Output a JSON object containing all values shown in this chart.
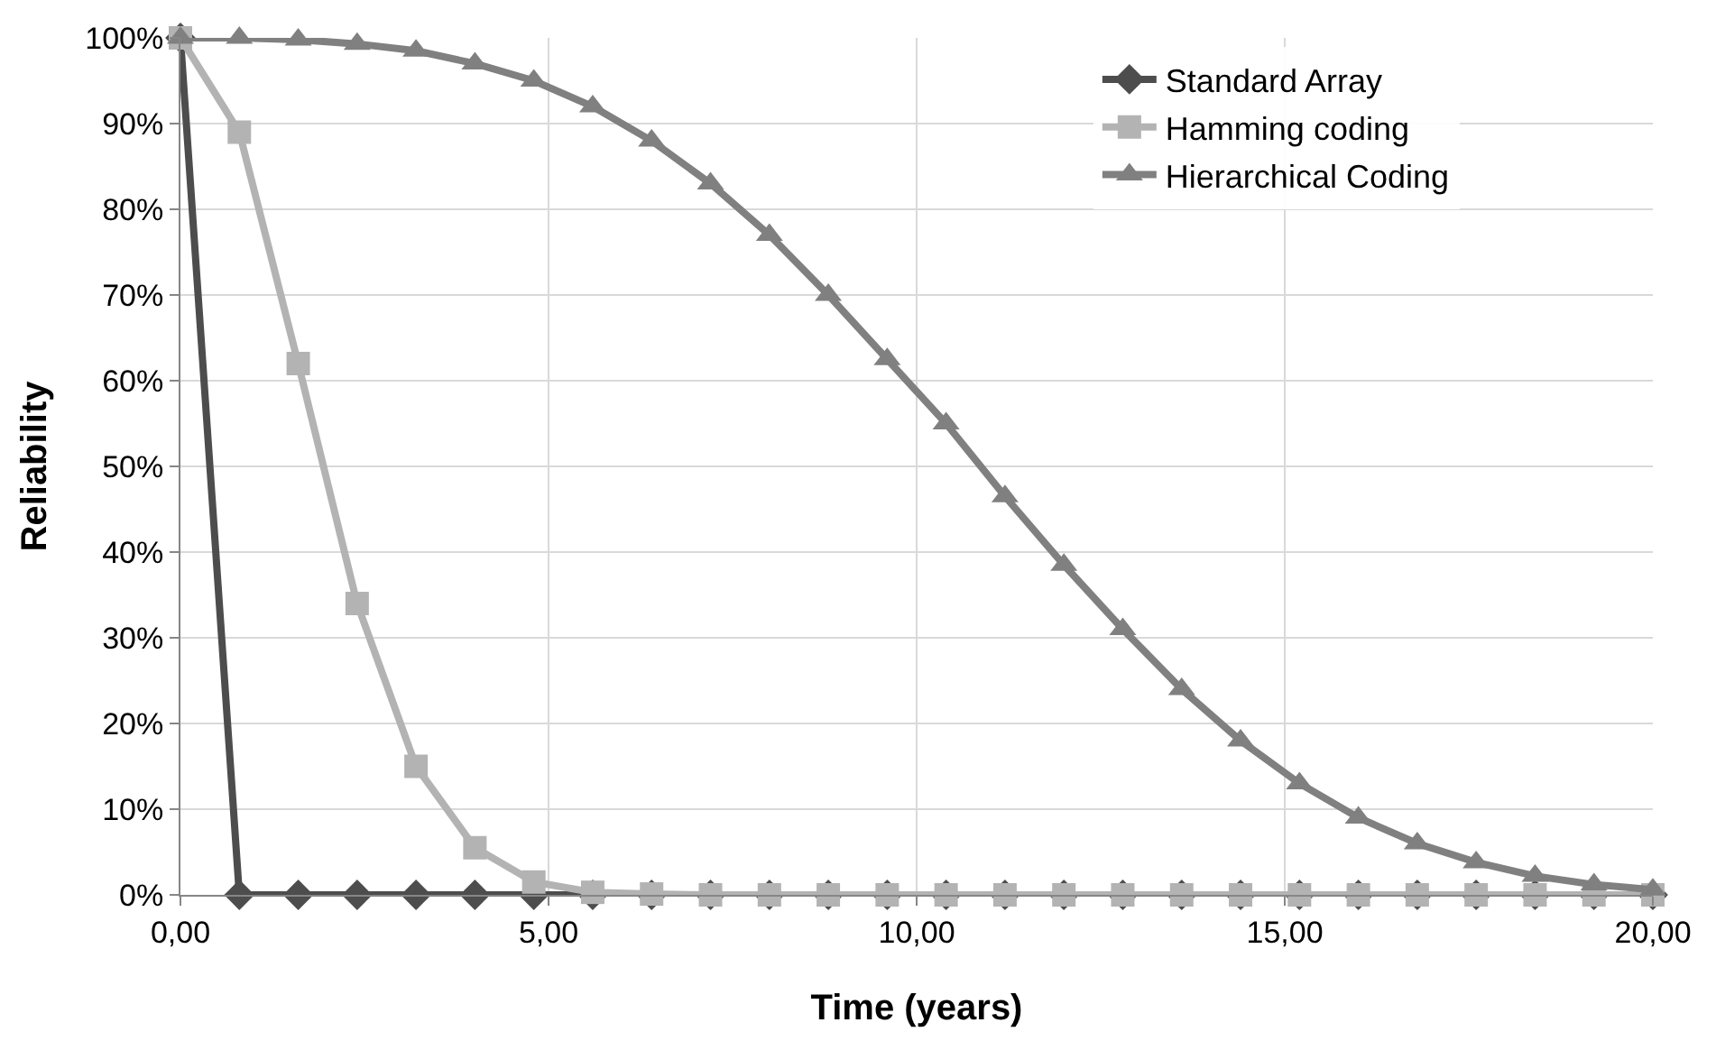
{
  "chart_data": {
    "type": "line",
    "xlabel": "Time (years)",
    "ylabel": "Reliability",
    "x": [
      0,
      0.8,
      1.6,
      2.4,
      3.2,
      4.0,
      4.8,
      5.6,
      6.4,
      7.2,
      8.0,
      8.8,
      9.6,
      10.4,
      11.2,
      12.0,
      12.8,
      13.6,
      14.4,
      15.2,
      16.0,
      16.8,
      17.6,
      18.4,
      19.2,
      20.0
    ],
    "series": [
      {
        "name": "Standard Array",
        "color": "#4d4d4d",
        "marker": "diamond",
        "values": [
          100,
          0,
          0,
          0,
          0,
          0,
          0,
          0,
          0,
          0,
          0,
          0,
          0,
          0,
          0,
          0,
          0,
          0,
          0,
          0,
          0,
          0,
          0,
          0,
          0,
          0
        ]
      },
      {
        "name": "Hamming coding",
        "color": "#b3b3b3",
        "marker": "square",
        "values": [
          100,
          89,
          62,
          34,
          15,
          5.5,
          1.5,
          0.3,
          0.1,
          0,
          0,
          0,
          0,
          0,
          0,
          0,
          0,
          0,
          0,
          0,
          0,
          0,
          0,
          0,
          0,
          0
        ]
      },
      {
        "name": "Hierarchical Coding",
        "color": "#808080",
        "marker": "triangle",
        "values": [
          100,
          100,
          99.8,
          99.3,
          98.5,
          97,
          95,
          92,
          88,
          83,
          77,
          70,
          62.5,
          55,
          46.5,
          38.5,
          31,
          24,
          18,
          13,
          9,
          6,
          3.8,
          2.2,
          1.2,
          0.6
        ]
      }
    ],
    "xlim": [
      0,
      20
    ],
    "xticks": [
      {
        "value": 0,
        "label": "0,00"
      },
      {
        "value": 5,
        "label": "5,00"
      },
      {
        "value": 10,
        "label": "10,00"
      },
      {
        "value": 15,
        "label": "15,00"
      },
      {
        "value": 20,
        "label": "20,00"
      }
    ],
    "ylim": [
      0,
      100
    ],
    "yticks": [
      {
        "value": 0,
        "label": "0%"
      },
      {
        "value": 10,
        "label": "10%"
      },
      {
        "value": 20,
        "label": "20%"
      },
      {
        "value": 30,
        "label": "30%"
      },
      {
        "value": 40,
        "label": "40%"
      },
      {
        "value": 50,
        "label": "50%"
      },
      {
        "value": 60,
        "label": "60%"
      },
      {
        "value": 70,
        "label": "70%"
      },
      {
        "value": 80,
        "label": "80%"
      },
      {
        "value": 90,
        "label": "90%"
      },
      {
        "value": 100,
        "label": "100%"
      }
    ],
    "grid": true,
    "legend": "top right",
    "line_style": "solid"
  }
}
